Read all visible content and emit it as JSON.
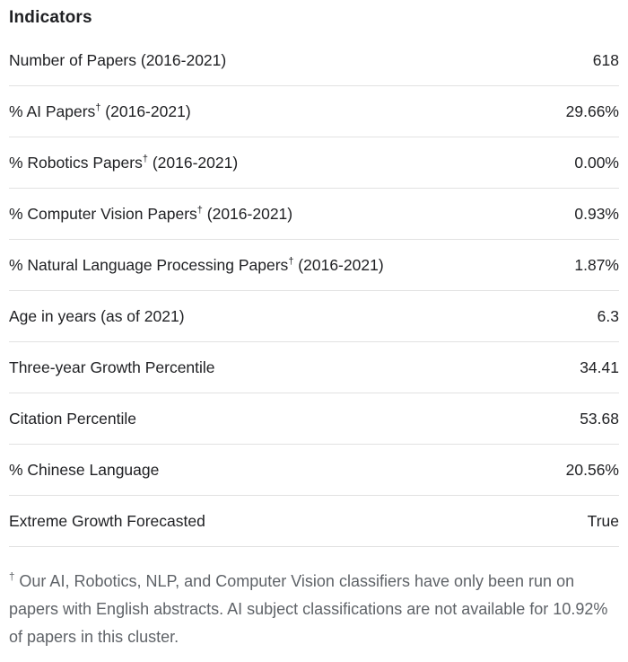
{
  "title": "Indicators",
  "rows": [
    {
      "label": "Number of Papers (2016-2021)",
      "dagger": "",
      "suffix": "",
      "value": "618"
    },
    {
      "label": "% AI Papers",
      "dagger": "†",
      "suffix": " (2016-2021)",
      "value": "29.66%"
    },
    {
      "label": "% Robotics Papers",
      "dagger": "†",
      "suffix": " (2016-2021)",
      "value": "0.00%"
    },
    {
      "label": "% Computer Vision Papers",
      "dagger": "†",
      "suffix": " (2016-2021)",
      "value": "0.93%"
    },
    {
      "label": "% Natural Language Processing Papers",
      "dagger": "†",
      "suffix": " (2016-2021)",
      "value": "1.87%"
    },
    {
      "label": "Age in years (as of 2021)",
      "dagger": "",
      "suffix": "",
      "value": "6.3"
    },
    {
      "label": "Three-year Growth Percentile",
      "dagger": "",
      "suffix": "",
      "value": "34.41"
    },
    {
      "label": "Citation Percentile",
      "dagger": "",
      "suffix": "",
      "value": "53.68"
    },
    {
      "label": "% Chinese Language",
      "dagger": "",
      "suffix": "",
      "value": "20.56%"
    },
    {
      "label": "Extreme Growth Forecasted",
      "dagger": "",
      "suffix": "",
      "value": "True"
    }
  ],
  "footnote": {
    "dagger": "†",
    "text": "Our AI, Robotics, NLP, and Computer Vision classifiers have only been run on papers with English abstracts. AI subject classifications are not available for 10.92% of papers in this cluster."
  },
  "colors": {
    "text": "#202124",
    "muted": "#5f6368",
    "divider": "#e2e2e2",
    "background": "#ffffff"
  }
}
